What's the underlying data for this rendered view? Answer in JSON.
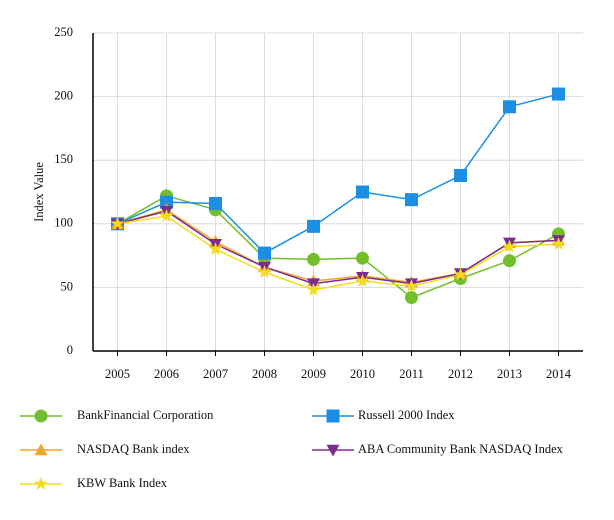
{
  "chart_data": {
    "type": "line",
    "y_label": "Index Value",
    "categories": [
      "2005",
      "2006",
      "2007",
      "2008",
      "2009",
      "2010",
      "2011",
      "2012",
      "2013",
      "2014"
    ],
    "ylim": [
      0,
      250
    ],
    "yticks": [
      0,
      50,
      100,
      150,
      200,
      250
    ],
    "grid": true,
    "series": [
      {
        "name": "BankFinancial Corporation",
        "color": "#72bf2c",
        "marker": "circle",
        "values": [
          100,
          122,
          111,
          73,
          72,
          73,
          42,
          57,
          71,
          92
        ]
      },
      {
        "name": "Russell 2000 Index",
        "color": "#1c8fe3",
        "marker": "square",
        "values": [
          100,
          117,
          116,
          77,
          98,
          125,
          119,
          138,
          192,
          202
        ]
      },
      {
        "name": "NASDAQ Bank index",
        "color": "#f4a62a",
        "marker": "triangle-up",
        "values": [
          100,
          111,
          86,
          66,
          55,
          59,
          54,
          61,
          85,
          87
        ]
      },
      {
        "name": "ABA Community Bank NASDAQ Index",
        "color": "#7b2d8e",
        "marker": "triangle-down",
        "values": [
          100,
          110,
          84,
          66,
          53,
          58,
          53,
          61,
          85,
          87
        ]
      },
      {
        "name": "KBW Bank Index",
        "color": "#f2dd1c",
        "marker": "star",
        "values": [
          100,
          106,
          80,
          62,
          48,
          55,
          51,
          60,
          82,
          84
        ]
      }
    ]
  }
}
